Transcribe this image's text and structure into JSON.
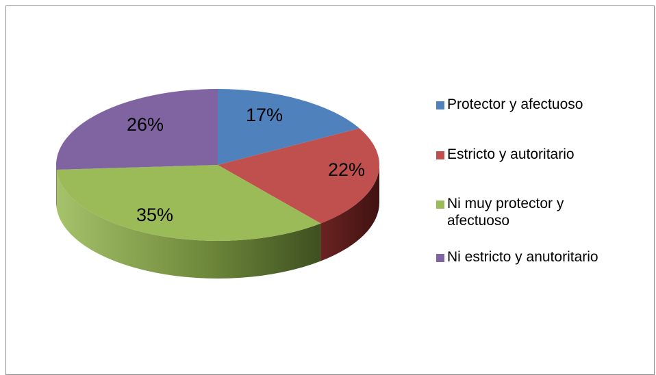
{
  "chart_data": {
    "type": "pie",
    "style": "3d",
    "categories": [
      "Protector y afectuoso",
      "Estricto y autoritario",
      "Ni muy protector y afectuoso",
      "Ni estricto y anutoritario"
    ],
    "values": [
      17,
      22,
      35,
      26
    ],
    "labels": [
      "17%",
      "22%",
      "35%",
      "26%"
    ],
    "colors": [
      "#4f81bd",
      "#c0504d",
      "#9bbb59",
      "#8064a2"
    ],
    "title": "",
    "legend_position": "right"
  }
}
